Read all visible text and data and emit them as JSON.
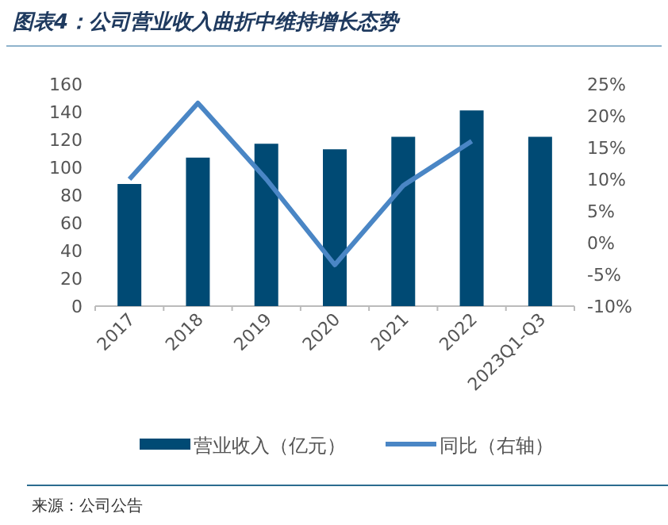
{
  "chart_data": {
    "type": "bar",
    "title": "图表4：公司营业收入曲折中维持增长态势",
    "categories": [
      "2017",
      "2018",
      "2019",
      "2020",
      "2021",
      "2022",
      "2023Q1-Q3"
    ],
    "series": [
      {
        "name": "营业收入（亿元）",
        "color": "#004a74",
        "values": [
          88,
          107,
          117,
          113,
          122,
          141,
          122
        ]
      },
      {
        "name": "同比（右轴）",
        "type": "line",
        "axis": "y2",
        "color": "#4a86c5",
        "values": [
          10,
          22,
          10,
          -3.5,
          9,
          16,
          null
        ]
      }
    ],
    "ylim": [
      0,
      160
    ],
    "yticks": [
      0,
      20,
      40,
      60,
      80,
      100,
      120,
      140,
      160
    ],
    "y2lim": [
      -10,
      25
    ],
    "y2ticks": [
      {
        "value": -10,
        "label": "-10%"
      },
      {
        "value": -5,
        "label": "-5%"
      },
      {
        "value": 0,
        "label": "0%"
      },
      {
        "value": 5,
        "label": "5%"
      },
      {
        "value": 10,
        "label": "10%"
      },
      {
        "value": 15,
        "label": "15%"
      },
      {
        "value": 20,
        "label": "20%"
      },
      {
        "value": 25,
        "label": "25%"
      }
    ],
    "legend": "bottom",
    "grid": false,
    "annotations": [
      "来源：公司公告"
    ]
  }
}
